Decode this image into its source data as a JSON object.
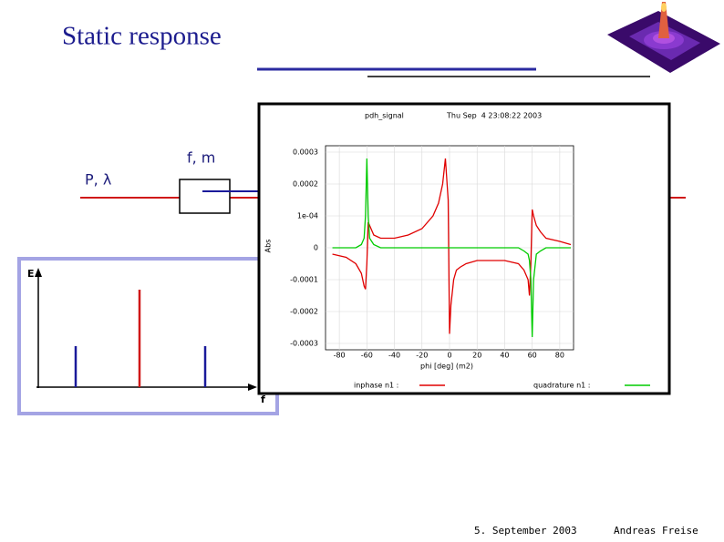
{
  "slide": {
    "title": "Static response",
    "footer_date": "5. September 2003",
    "footer_author": "Andreas Freise"
  },
  "diagram": {
    "source_label": "P, λ",
    "modulator_label": "f, m"
  },
  "spectrum": {
    "y_label": "E",
    "x_label": "f"
  },
  "chart_data": {
    "type": "line",
    "title": "pdh_signal",
    "subtitle": "Thu Sep  4 23:08:22 2003",
    "x_label": "phi [deg] (m2)",
    "y_label": "Abs",
    "x": [
      -85,
      -75,
      -68,
      -64,
      -62,
      -61,
      -60,
      -59,
      -58,
      -55,
      -50,
      -40,
      -30,
      -20,
      -12,
      -8,
      -5,
      -3,
      -1,
      0,
      1,
      3,
      5,
      8,
      12,
      20,
      30,
      40,
      50,
      54,
      57,
      58,
      59,
      60,
      61,
      63,
      66,
      70,
      80,
      88
    ],
    "series": [
      {
        "name": "inphase n1 :",
        "color": "#e00000",
        "values": [
          -2e-05,
          -3e-05,
          -5e-05,
          -8e-05,
          -0.00012,
          -0.00013,
          -5e-05,
          8e-05,
          7e-05,
          4e-05,
          3e-05,
          3e-05,
          4e-05,
          6e-05,
          0.0001,
          0.00014,
          0.0002,
          0.00028,
          0.00015,
          -0.00027,
          -0.00018,
          -0.0001,
          -7e-05,
          -6e-05,
          -5e-05,
          -4e-05,
          -4e-05,
          -4e-05,
          -5e-05,
          -7e-05,
          -0.0001,
          -0.00015,
          -5e-05,
          0.00012,
          0.0001,
          7e-05,
          5e-05,
          3e-05,
          2e-05,
          1e-05
        ]
      },
      {
        "name": "quadrature n1 :",
        "color": "#00cc00",
        "values": [
          0,
          0,
          0,
          1e-05,
          3e-05,
          0.0001,
          0.00028,
          0.0001,
          3e-05,
          1e-05,
          0,
          0,
          0,
          0,
          0,
          0,
          0,
          0,
          0,
          0,
          0,
          0,
          0,
          0,
          0,
          0,
          0,
          0,
          0,
          -1e-05,
          -2e-05,
          -4e-05,
          -0.0001,
          -0.00028,
          -0.0001,
          -2e-05,
          -1e-05,
          0,
          0,
          0
        ]
      }
    ],
    "xlim": [
      -90,
      90
    ],
    "ylim": [
      -0.00032,
      0.00032
    ],
    "xticks": [
      -80,
      -60,
      -40,
      -20,
      0,
      20,
      40,
      60,
      80
    ],
    "yticks": [
      0.0003,
      0.0002,
      {
        "value": 0.0001,
        "label": "1e-04"
      },
      0,
      -0.0001,
      -0.0002,
      -0.0003
    ],
    "grid": true
  }
}
